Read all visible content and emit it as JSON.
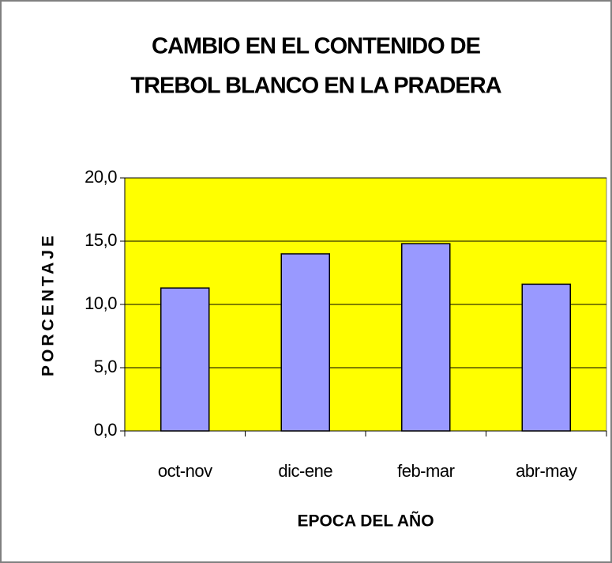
{
  "chart_data": {
    "type": "bar",
    "title": [
      "CAMBIO EN EL CONTENIDO DE",
      "TREBOL BLANCO EN LA PRADERA"
    ],
    "x_label": "EPOCA DEL AÑO",
    "y_label": "PORCENTAJE",
    "categories": [
      "oct-nov",
      "dic-ene",
      "feb-mar",
      "abr-may"
    ],
    "values": [
      11.3,
      14.0,
      14.8,
      11.6
    ],
    "color": "#9999ff",
    "plot_background": "#ffff00",
    "ylim": [
      0,
      20
    ],
    "yticks": [
      {
        "value": 0,
        "label": "0,0"
      },
      {
        "value": 5,
        "label": "5,0"
      },
      {
        "value": 10,
        "label": "10,0"
      },
      {
        "value": 15,
        "label": "15,0"
      },
      {
        "value": 20,
        "label": "20,0"
      }
    ],
    "grid": true
  }
}
